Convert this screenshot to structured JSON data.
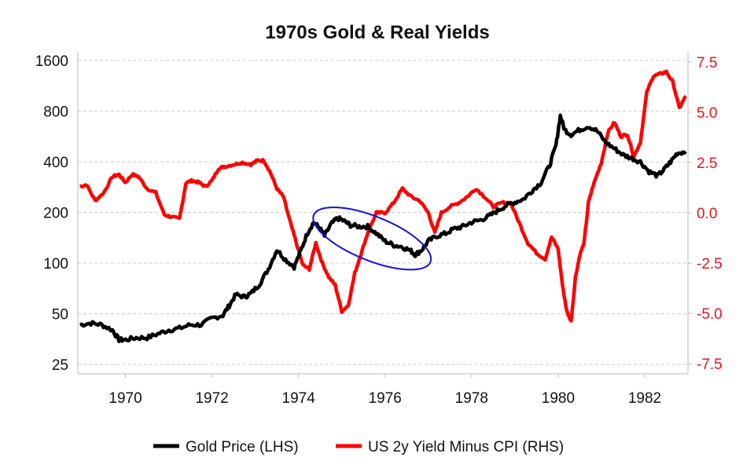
{
  "colors": {
    "gold": "#000000",
    "real_yield": "#ff0000",
    "ellipse": "#1010e0",
    "grid": "#cccccc",
    "right_axis": "#e8141c"
  },
  "chart_data": {
    "type": "line",
    "title": "1970s Gold & Real Yields",
    "xlim": [
      1968.9,
      1983.0
    ],
    "x_ticks": [
      {
        "value": 1970,
        "label": "1970"
      },
      {
        "value": 1972,
        "label": "1972"
      },
      {
        "value": 1974,
        "label": "1974"
      },
      {
        "value": 1976,
        "label": "1976"
      },
      {
        "value": 1978,
        "label": "1978"
      },
      {
        "value": 1980,
        "label": "1980"
      },
      {
        "value": 1982,
        "label": "1982"
      }
    ],
    "y_left": {
      "scale": "log2",
      "ylim": [
        22,
        1800
      ],
      "ticks": [
        {
          "value": 25,
          "label": "25"
        },
        {
          "value": 50,
          "label": "50"
        },
        {
          "value": 100,
          "label": "100"
        },
        {
          "value": 200,
          "label": "200"
        },
        {
          "value": 400,
          "label": "400"
        },
        {
          "value": 800,
          "label": "800"
        },
        {
          "value": 1600,
          "label": "1600"
        }
      ]
    },
    "y_right": {
      "scale": "linear",
      "ylim": [
        -8.0,
        8.0
      ],
      "ticks": [
        {
          "value": 7.5,
          "label": "7.5"
        },
        {
          "value": 5.0,
          "label": "5.0"
        },
        {
          "value": 2.5,
          "label": "2.5"
        },
        {
          "value": 0.0,
          "label": "0.0"
        },
        {
          "value": -2.5,
          "label": "-2.5"
        },
        {
          "value": -5.0,
          "label": "-5.0"
        },
        {
          "value": -7.5,
          "label": "-7.5"
        }
      ]
    },
    "series": [
      {
        "name": "Gold Price (LHS)",
        "axis": "left",
        "x": [
          1968.95,
          1969.2,
          1969.45,
          1969.7,
          1969.85,
          1970.0,
          1970.25,
          1970.5,
          1970.75,
          1971.0,
          1971.25,
          1971.5,
          1971.75,
          1972.0,
          1972.25,
          1972.4,
          1972.55,
          1972.75,
          1972.9,
          1973.1,
          1973.3,
          1973.5,
          1973.7,
          1973.9,
          1974.05,
          1974.2,
          1974.35,
          1974.5,
          1974.6,
          1974.75,
          1974.9,
          1975.05,
          1975.2,
          1975.4,
          1975.6,
          1975.8,
          1976.0,
          1976.2,
          1976.4,
          1976.6,
          1976.7,
          1976.85,
          1977.0,
          1977.2,
          1977.4,
          1977.6,
          1977.8,
          1978.0,
          1978.2,
          1978.4,
          1978.6,
          1978.8,
          1979.0,
          1979.2,
          1979.4,
          1979.6,
          1979.8,
          1979.95,
          1980.05,
          1980.15,
          1980.3,
          1980.5,
          1980.7,
          1980.9,
          1981.1,
          1981.3,
          1981.5,
          1981.7,
          1981.9,
          1982.1,
          1982.3,
          1982.45,
          1982.6,
          1982.75,
          1982.95
        ],
        "values": [
          43,
          44,
          43,
          40,
          35,
          35,
          36,
          36,
          38,
          40,
          41,
          43,
          43,
          47,
          49,
          56,
          65,
          63,
          66,
          75,
          92,
          120,
          105,
          95,
          118,
          150,
          175,
          160,
          145,
          170,
          185,
          178,
          168,
          165,
          165,
          150,
          135,
          128,
          125,
          118,
          112,
          120,
          135,
          145,
          150,
          160,
          165,
          175,
          180,
          190,
          205,
          220,
          230,
          240,
          270,
          300,
          380,
          500,
          750,
          620,
          580,
          620,
          650,
          610,
          520,
          480,
          440,
          420,
          400,
          350,
          330,
          360,
          400,
          450,
          460
        ]
      },
      {
        "name": "US 2y Yield Minus CPI (RHS)",
        "axis": "right",
        "x": [
          1968.95,
          1969.1,
          1969.3,
          1969.5,
          1969.7,
          1969.85,
          1970.0,
          1970.15,
          1970.3,
          1970.5,
          1970.7,
          1970.9,
          1971.05,
          1971.25,
          1971.4,
          1971.55,
          1971.7,
          1971.85,
          1972.0,
          1972.15,
          1972.3,
          1972.5,
          1972.7,
          1972.9,
          1973.05,
          1973.2,
          1973.35,
          1973.5,
          1973.65,
          1973.8,
          1973.95,
          1974.1,
          1974.25,
          1974.4,
          1974.55,
          1974.7,
          1974.85,
          1975.0,
          1975.15,
          1975.3,
          1975.45,
          1975.6,
          1975.8,
          1976.0,
          1976.2,
          1976.4,
          1976.6,
          1976.8,
          1977.0,
          1977.15,
          1977.3,
          1977.5,
          1977.7,
          1977.9,
          1978.1,
          1978.3,
          1978.5,
          1978.7,
          1978.9,
          1979.1,
          1979.3,
          1979.5,
          1979.7,
          1979.85,
          1980.0,
          1980.1,
          1980.2,
          1980.3,
          1980.4,
          1980.5,
          1980.6,
          1980.7,
          1980.8,
          1981.0,
          1981.15,
          1981.3,
          1981.45,
          1981.6,
          1981.75,
          1981.9,
          1982.05,
          1982.2,
          1982.35,
          1982.5,
          1982.65,
          1982.8,
          1982.95
        ],
        "values": [
          1.3,
          1.4,
          0.6,
          1.0,
          1.8,
          1.9,
          1.5,
          1.9,
          1.8,
          1.2,
          1.0,
          -0.1,
          -0.2,
          -0.3,
          1.5,
          1.6,
          1.5,
          1.3,
          1.6,
          2.2,
          2.3,
          2.4,
          2.5,
          2.4,
          2.6,
          2.6,
          2.0,
          1.2,
          0.8,
          -0.4,
          -1.5,
          -2.6,
          -2.8,
          -1.5,
          -2.5,
          -3.2,
          -3.6,
          -4.9,
          -4.6,
          -3.0,
          -2.0,
          -1.0,
          0.0,
          0.0,
          0.5,
          1.2,
          0.8,
          0.6,
          0.0,
          -1.0,
          0.0,
          0.3,
          0.5,
          0.8,
          1.2,
          0.8,
          0.3,
          0.5,
          0.5,
          -0.5,
          -1.5,
          -2.0,
          -2.3,
          -1.2,
          -1.8,
          -3.6,
          -4.9,
          -5.4,
          -3.2,
          -2.1,
          -1.5,
          0.5,
          1.3,
          2.5,
          4.0,
          4.5,
          3.8,
          3.9,
          2.8,
          3.5,
          6.0,
          6.8,
          6.9,
          7.0,
          6.5,
          5.2,
          5.8
        ]
      }
    ],
    "annotations": [
      {
        "type": "ellipse",
        "center_x": 1975.7,
        "center_y_left": 140,
        "description": "highlighted region"
      }
    ],
    "legend": {
      "position": "bottom-center",
      "items": [
        {
          "label": "Gold Price (LHS)",
          "color": "#000000"
        },
        {
          "label": "US 2y Yield Minus CPI (RHS)",
          "color": "#ff0000"
        }
      ]
    }
  }
}
